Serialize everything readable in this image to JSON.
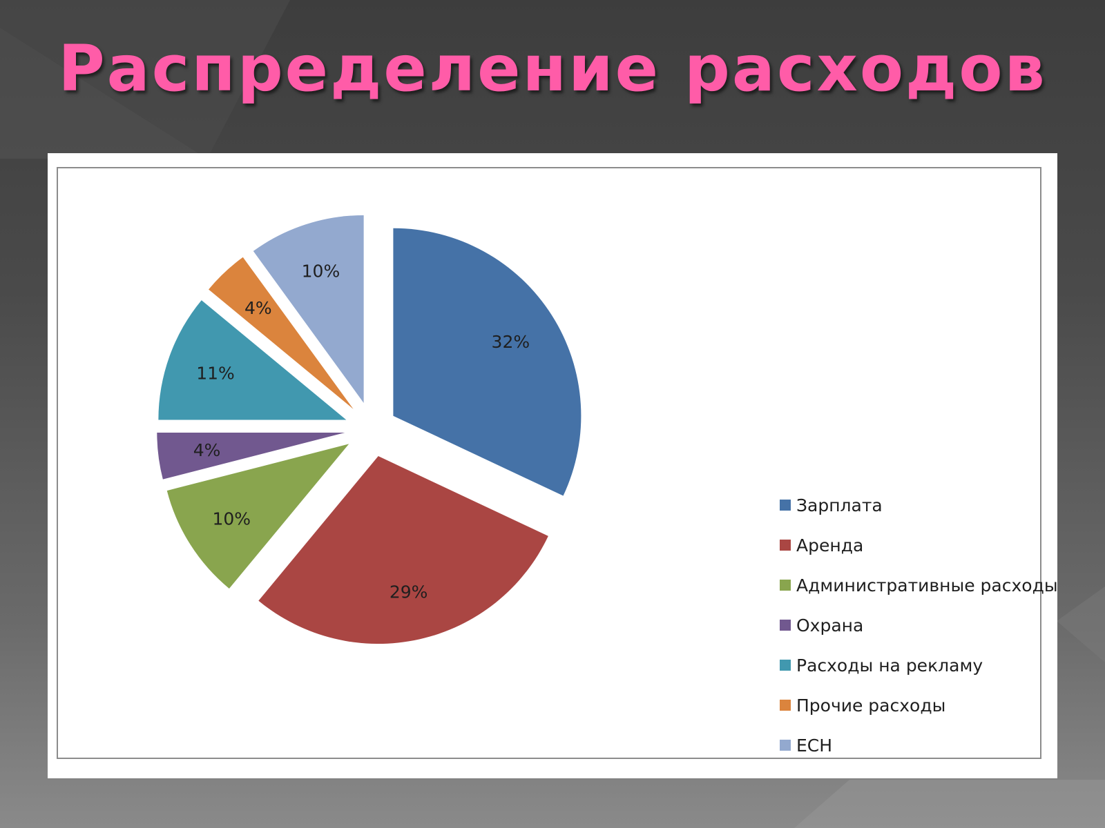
{
  "slide": {
    "title": "Распределение расходов"
  },
  "chart_data": {
    "type": "pie",
    "title": "",
    "legend_position": "right",
    "slices": [
      {
        "name": "Зарплата",
        "value": 32,
        "label": "32%",
        "color": "#4572a7"
      },
      {
        "name": "Аренда",
        "value": 29,
        "label": "29%",
        "color": "#aa4643"
      },
      {
        "name": "Административные расходы",
        "value": 10,
        "label": "10%",
        "color": "#89a54e"
      },
      {
        "name": "Охрана",
        "value": 4,
        "label": "4%",
        "color": "#71588f"
      },
      {
        "name": "Расходы на рекламу",
        "value": 11,
        "label": "11%",
        "color": "#4198af"
      },
      {
        "name": "Прочие расходы",
        "value": 4,
        "label": "4%",
        "color": "#db843d"
      },
      {
        "name": "ЕСН",
        "value": 10,
        "label": "10%",
        "color": "#93a9cf"
      }
    ]
  }
}
